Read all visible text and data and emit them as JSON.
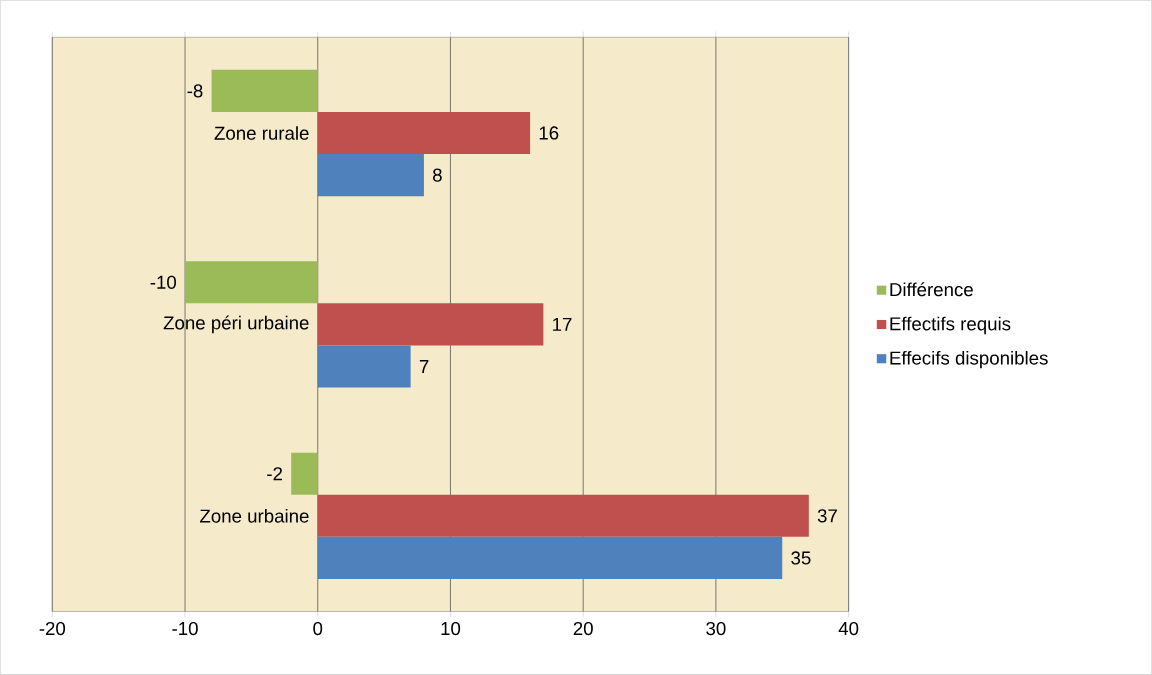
{
  "chart_data": {
    "type": "bar",
    "orientation": "horizontal",
    "categories": [
      "Zone rurale",
      "Zone péri urbaine",
      "Zone urbaine"
    ],
    "series": [
      {
        "name": "Différence",
        "color": "#9bbb59",
        "values": [
          -8,
          -10,
          -2
        ]
      },
      {
        "name": "Effectifs requis",
        "color": "#c0504d",
        "values": [
          16,
          17,
          37
        ]
      },
      {
        "name": "Effecifs disponibles",
        "color": "#4f81bd",
        "values": [
          8,
          7,
          35
        ]
      }
    ],
    "xlim": [
      -20,
      40
    ],
    "xticks": [
      -20,
      -10,
      0,
      10,
      20,
      30,
      40
    ],
    "grid": "x",
    "legend": "right",
    "data_labels": true
  }
}
